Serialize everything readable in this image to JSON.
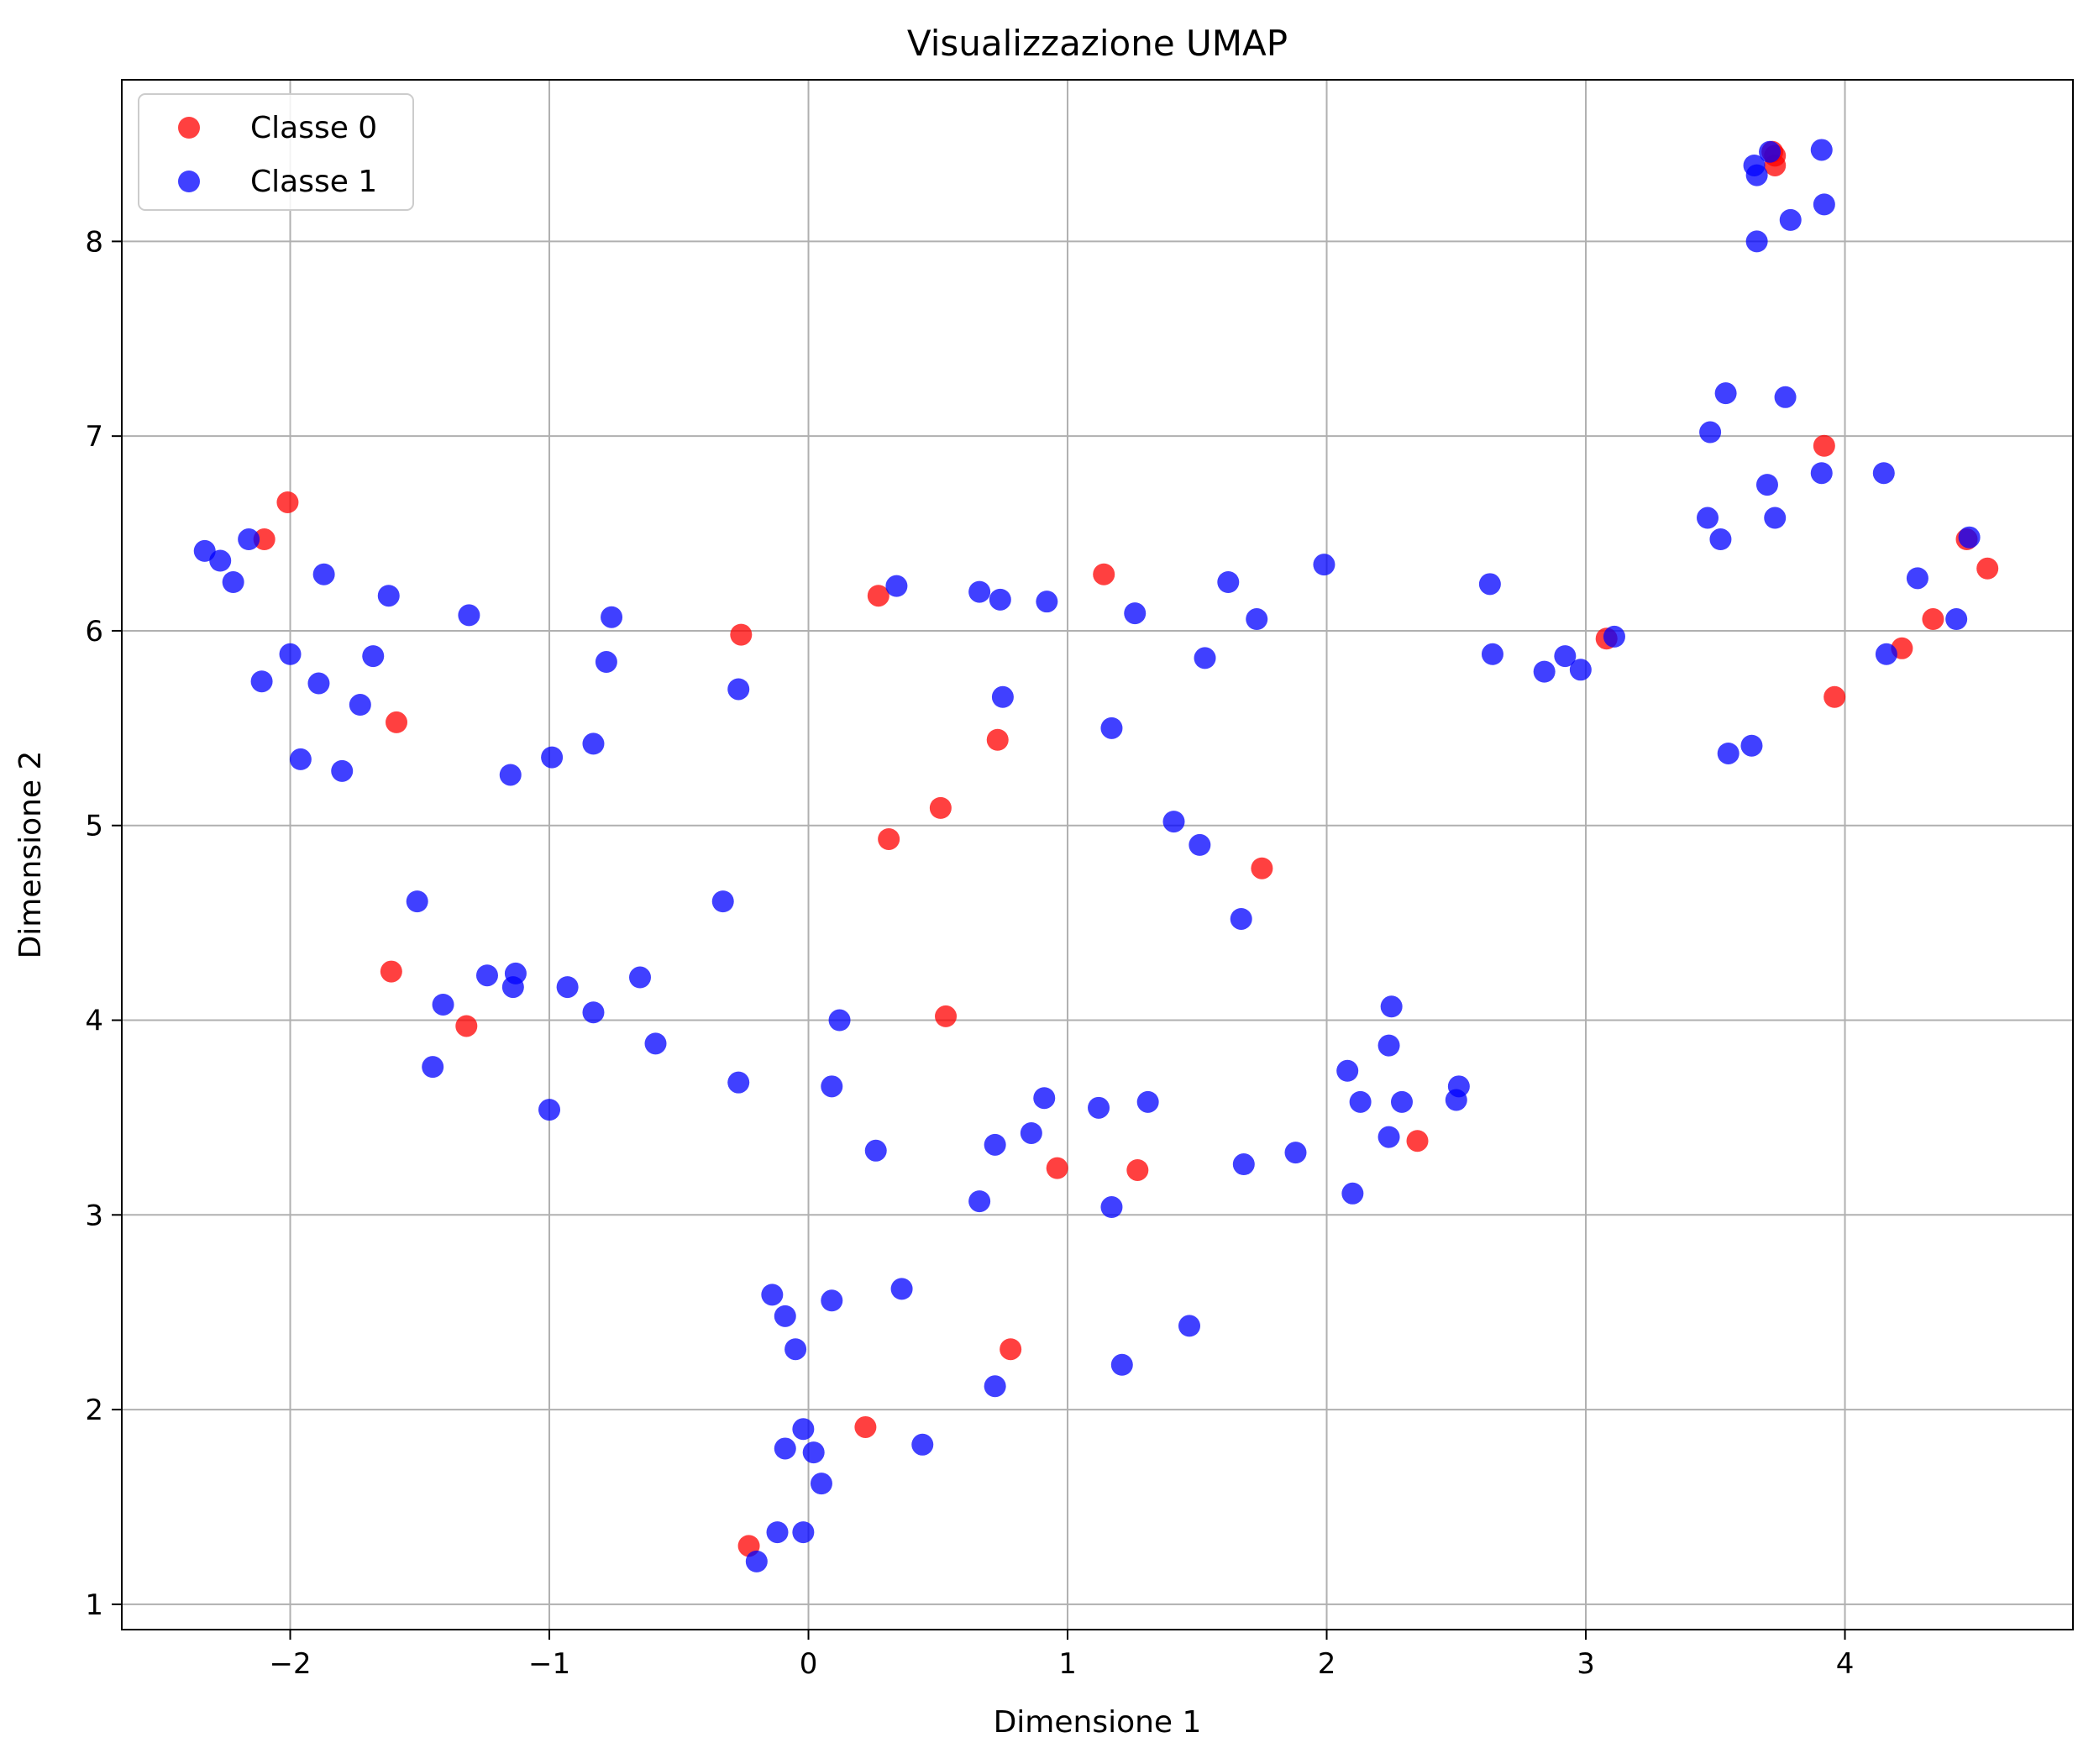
{
  "chart_data": {
    "type": "scatter",
    "title": "Visualizzazione UMAP",
    "xlabel": "Dimensione 1",
    "ylabel": "Dimensione 2",
    "xlim": [
      -2.65,
      4.88
    ],
    "ylim": [
      0.87,
      8.83
    ],
    "xticks": [
      -2,
      -1,
      0,
      1,
      2,
      3,
      4
    ],
    "yticks": [
      1,
      2,
      3,
      4,
      5,
      6,
      7,
      8
    ],
    "grid": true,
    "legend_position": "top-left",
    "series": [
      {
        "name": "Classe 0",
        "color": "#ff0000",
        "points": [
          [
            -2.1,
            6.47
          ],
          [
            -2.01,
            6.66
          ],
          [
            -1.59,
            5.53
          ],
          [
            -1.61,
            4.25
          ],
          [
            -1.32,
            3.97
          ],
          [
            -0.26,
            5.98
          ],
          [
            0.27,
            6.18
          ],
          [
            0.31,
            4.93
          ],
          [
            0.51,
            5.09
          ],
          [
            0.73,
            5.44
          ],
          [
            0.53,
            4.02
          ],
          [
            1.14,
            6.29
          ],
          [
            0.96,
            3.24
          ],
          [
            1.27,
            3.23
          ],
          [
            1.75,
            4.78
          ],
          [
            0.78,
            2.31
          ],
          [
            0.22,
            1.91
          ],
          [
            -0.23,
            1.3
          ],
          [
            2.35,
            3.38
          ],
          [
            3.08,
            5.96
          ],
          [
            3.73,
            8.44
          ],
          [
            3.73,
            8.39
          ],
          [
            3.72,
            8.46
          ],
          [
            3.92,
            6.95
          ],
          [
            3.96,
            5.66
          ],
          [
            4.22,
            5.91
          ],
          [
            4.34,
            6.06
          ],
          [
            4.47,
            6.47
          ],
          [
            4.55,
            6.32
          ]
        ]
      },
      {
        "name": "Classe 1",
        "color": "#0000ff",
        "points": [
          [
            -2.33,
            6.41
          ],
          [
            -2.27,
            6.36
          ],
          [
            -2.22,
            6.25
          ],
          [
            -2.16,
            6.47
          ],
          [
            -2.11,
            5.74
          ],
          [
            -2.0,
            5.88
          ],
          [
            -1.96,
            5.34
          ],
          [
            -1.89,
            5.73
          ],
          [
            -1.87,
            6.29
          ],
          [
            -1.8,
            5.28
          ],
          [
            -1.73,
            5.62
          ],
          [
            -1.68,
            5.87
          ],
          [
            -1.62,
            6.18
          ],
          [
            -1.31,
            6.08
          ],
          [
            -1.15,
            5.26
          ],
          [
            -0.99,
            5.35
          ],
          [
            -0.83,
            5.42
          ],
          [
            -0.78,
            5.84
          ],
          [
            -0.76,
            6.07
          ],
          [
            -0.27,
            5.7
          ],
          [
            -1.51,
            4.61
          ],
          [
            -1.41,
            4.08
          ],
          [
            -1.45,
            3.76
          ],
          [
            -1.24,
            4.23
          ],
          [
            -1.14,
            4.17
          ],
          [
            -1.13,
            4.24
          ],
          [
            -0.93,
            4.17
          ],
          [
            -0.83,
            4.04
          ],
          [
            -0.65,
            4.22
          ],
          [
            -0.59,
            3.88
          ],
          [
            -1.0,
            3.54
          ],
          [
            -0.33,
            4.61
          ],
          [
            -0.27,
            3.68
          ],
          [
            0.12,
            4.0
          ],
          [
            0.09,
            3.66
          ],
          [
            0.26,
            3.33
          ],
          [
            0.34,
            6.23
          ],
          [
            0.66,
            6.2
          ],
          [
            0.74,
            6.16
          ],
          [
            0.92,
            6.15
          ],
          [
            0.75,
            5.66
          ],
          [
            1.17,
            5.5
          ],
          [
            1.26,
            6.09
          ],
          [
            1.53,
            5.86
          ],
          [
            1.62,
            6.25
          ],
          [
            1.73,
            6.06
          ],
          [
            1.99,
            6.34
          ],
          [
            1.41,
            5.02
          ],
          [
            1.51,
            4.9
          ],
          [
            1.67,
            4.52
          ],
          [
            0.66,
            3.07
          ],
          [
            0.72,
            3.36
          ],
          [
            0.86,
            3.42
          ],
          [
            0.91,
            3.6
          ],
          [
            1.12,
            3.55
          ],
          [
            1.31,
            3.58
          ],
          [
            1.17,
            3.04
          ],
          [
            1.68,
            3.26
          ],
          [
            1.88,
            3.32
          ],
          [
            2.08,
            3.74
          ],
          [
            2.13,
            3.58
          ],
          [
            2.1,
            3.11
          ],
          [
            2.24,
            3.87
          ],
          [
            2.25,
            4.07
          ],
          [
            2.24,
            3.4
          ],
          [
            2.29,
            3.58
          ],
          [
            2.5,
            3.59
          ],
          [
            2.51,
            3.66
          ],
          [
            -0.14,
            2.59
          ],
          [
            -0.09,
            2.48
          ],
          [
            -0.05,
            2.31
          ],
          [
            0.09,
            2.56
          ],
          [
            0.36,
            2.62
          ],
          [
            0.72,
            2.12
          ],
          [
            1.21,
            2.23
          ],
          [
            1.47,
            2.43
          ],
          [
            -0.02,
            1.9
          ],
          [
            -0.09,
            1.8
          ],
          [
            0.02,
            1.78
          ],
          [
            0.05,
            1.62
          ],
          [
            0.44,
            1.82
          ],
          [
            -0.12,
            1.37
          ],
          [
            -0.02,
            1.37
          ],
          [
            -0.2,
            1.22
          ],
          [
            2.63,
            6.24
          ],
          [
            2.64,
            5.88
          ],
          [
            2.84,
            5.79
          ],
          [
            2.92,
            5.87
          ],
          [
            2.98,
            5.8
          ],
          [
            3.11,
            5.97
          ],
          [
            3.47,
            6.58
          ],
          [
            3.48,
            7.02
          ],
          [
            3.52,
            6.47
          ],
          [
            3.54,
            7.22
          ],
          [
            3.55,
            5.37
          ],
          [
            3.64,
            5.41
          ],
          [
            3.65,
            8.39
          ],
          [
            3.66,
            8.34
          ],
          [
            3.66,
            8.0
          ],
          [
            3.7,
            6.75
          ],
          [
            3.71,
            8.46
          ],
          [
            3.73,
            6.58
          ],
          [
            3.77,
            7.2
          ],
          [
            3.79,
            8.11
          ],
          [
            3.91,
            6.81
          ],
          [
            3.91,
            8.47
          ],
          [
            3.92,
            8.19
          ],
          [
            4.15,
            6.81
          ],
          [
            4.16,
            5.88
          ],
          [
            4.28,
            6.27
          ],
          [
            4.43,
            6.06
          ],
          [
            4.48,
            6.48
          ]
        ]
      }
    ]
  }
}
